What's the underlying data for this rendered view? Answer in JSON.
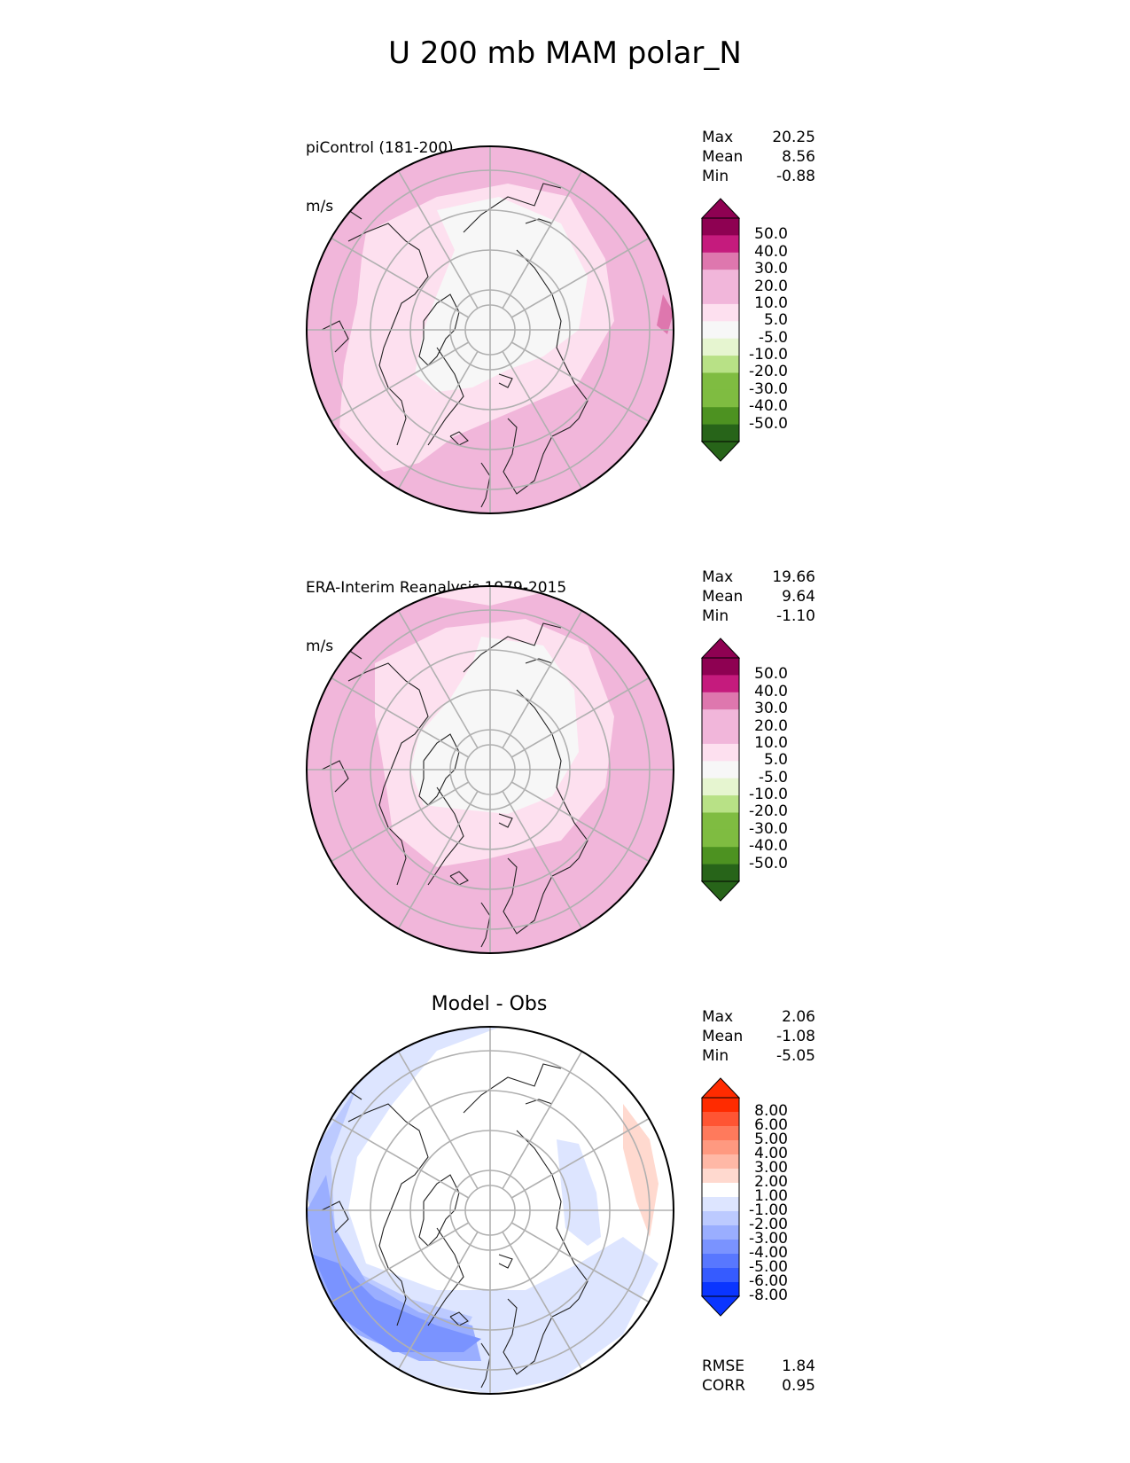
{
  "title": "U 200 mb MAM polar_N",
  "colors": {
    "pink": [
      "#8e0152",
      "#c51b7d",
      "#de77ae",
      "#f1b6da",
      "#fde0ef"
    ],
    "neutral": "#f7f7f7",
    "green": [
      "#e6f5d0",
      "#b8e186",
      "#7fbc41",
      "#4d9221",
      "#276419"
    ],
    "diff_red": [
      "#ff2b00",
      "#ff5533",
      "#ff7a5c",
      "#ff9980",
      "#ffb8a6",
      "#ffd9cf"
    ],
    "diff_blue": [
      "#dde5ff",
      "#bccaff",
      "#9aaeff",
      "#7a93ff",
      "#5877ff",
      "#365bff",
      "#0a35ff"
    ]
  },
  "panels": [
    {
      "label": "piControl (181-200)",
      "units": "m/s",
      "stats": [
        {
          "name": "Max",
          "value": "20.25"
        },
        {
          "name": "Mean",
          "value": "8.56"
        },
        {
          "name": "Min",
          "value": "-0.88"
        }
      ],
      "colorbar_ticks": [
        "50.0",
        "40.0",
        "30.0",
        "20.0",
        "10.0",
        "5.0",
        "-5.0",
        "-10.0",
        "-20.0",
        "-30.0",
        "-40.0",
        "-50.0"
      ]
    },
    {
      "label": "ERA-Interim Reanalysis 1979-2015",
      "units": "m/s",
      "stats": [
        {
          "name": "Max",
          "value": "19.66"
        },
        {
          "name": "Mean",
          "value": "9.64"
        },
        {
          "name": "Min",
          "value": "-1.10"
        }
      ],
      "colorbar_ticks": [
        "50.0",
        "40.0",
        "30.0",
        "20.0",
        "10.0",
        "5.0",
        "-5.0",
        "-10.0",
        "-20.0",
        "-30.0",
        "-40.0",
        "-50.0"
      ]
    },
    {
      "title": "Model - Obs",
      "stats": [
        {
          "name": "Max",
          "value": "2.06"
        },
        {
          "name": "Mean",
          "value": "-1.08"
        },
        {
          "name": "Min",
          "value": "-5.05"
        }
      ],
      "colorbar_ticks": [
        "8.00",
        "6.00",
        "5.00",
        "4.00",
        "3.00",
        "2.00",
        "1.00",
        "-1.00",
        "-2.00",
        "-3.00",
        "-4.00",
        "-5.00",
        "-6.00",
        "-8.00"
      ],
      "metrics": [
        {
          "name": "RMSE",
          "value": "1.84"
        },
        {
          "name": "CORR",
          "value": "0.95"
        }
      ]
    }
  ]
}
